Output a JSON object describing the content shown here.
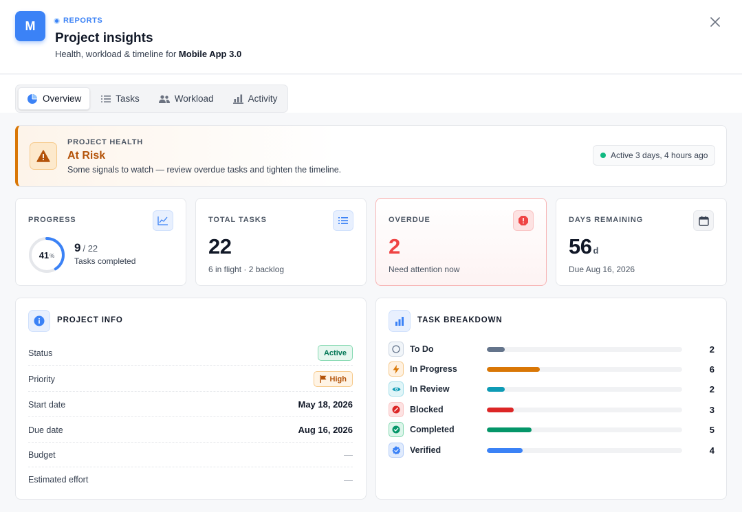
{
  "header": {
    "logo_letter": "M",
    "eyebrow": "REPORTS",
    "title": "Project insights",
    "subtitle_prefix": "Health, workload & timeline for ",
    "project_name": "Mobile App 3.0"
  },
  "tabs": [
    {
      "label": "Overview",
      "icon": "pie-chart-icon",
      "active": true
    },
    {
      "label": "Tasks",
      "icon": "list-icon",
      "active": false
    },
    {
      "label": "Workload",
      "icon": "users-icon",
      "active": false
    },
    {
      "label": "Activity",
      "icon": "bar-chart-icon",
      "active": false
    }
  ],
  "health": {
    "label": "PROJECT HEALTH",
    "value": "At Risk",
    "description": "Some signals to watch — review overdue tasks and tighten the timeline.",
    "activity": "Active 3 days, 4 hours ago",
    "accent": "#d97706"
  },
  "stats": {
    "progress": {
      "label": "PROGRESS",
      "percent": 41,
      "percent_unit": "%",
      "done": "9",
      "total": "/ 22",
      "caption": "Tasks completed"
    },
    "total": {
      "label": "TOTAL TASKS",
      "value": "22",
      "caption": "6 in flight · 2 backlog"
    },
    "overdue": {
      "label": "OVERDUE",
      "value": "2",
      "caption": "Need attention now"
    },
    "days": {
      "label": "DAYS REMAINING",
      "value": "56",
      "unit": "d",
      "caption": "Due Aug 16, 2026"
    }
  },
  "project_info": {
    "title": "PROJECT INFO",
    "rows": [
      {
        "label": "Status",
        "value": "Active"
      },
      {
        "label": "Priority",
        "value": "High"
      },
      {
        "label": "Start date",
        "value": "May 18, 2026"
      },
      {
        "label": "Due date",
        "value": "Aug 16, 2026"
      },
      {
        "label": "Budget",
        "value": "—"
      },
      {
        "label": "Estimated effort",
        "value": "—"
      }
    ]
  },
  "task_breakdown": {
    "title": "TASK BREAKDOWN",
    "max": 22,
    "items": [
      {
        "label": "To Do",
        "count": 2,
        "color": "#64748b",
        "icon": "circle-icon"
      },
      {
        "label": "In Progress",
        "count": 6,
        "color": "#d97706",
        "icon": "bolt-icon"
      },
      {
        "label": "In Review",
        "count": 2,
        "color": "#0e9bb5",
        "icon": "eye-icon"
      },
      {
        "label": "Blocked",
        "count": 3,
        "color": "#dc2626",
        "icon": "blocked-icon"
      },
      {
        "label": "Completed",
        "count": 5,
        "color": "#059669",
        "icon": "check-circle-icon"
      },
      {
        "label": "Verified",
        "count": 4,
        "color": "#3b82f6",
        "icon": "verified-badge-icon"
      }
    ]
  }
}
